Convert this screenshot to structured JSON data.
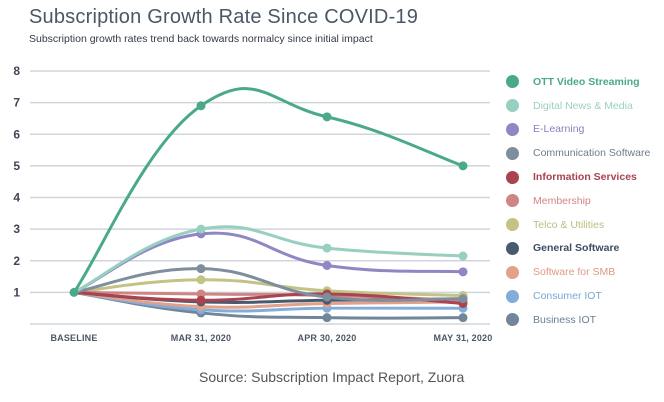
{
  "header": {
    "title": "Subscription Growth Rate Since COVID-19",
    "subtitle": "Subscription growth rates trend back towards normalcy since initial impact"
  },
  "source": "Source: Subscription Impact Report, Zuora",
  "chart_data": {
    "type": "line",
    "title": "Subscription Growth Rate Since COVID-19",
    "subtitle": "Subscription growth rates trend back towards normalcy since initial impact",
    "xlabel": "",
    "ylabel": "",
    "categories": [
      "BASELINE",
      "MAR 31, 2020",
      "APR 30, 2020",
      "MAY 31, 2020"
    ],
    "yticks": [
      "1",
      "2",
      "3",
      "4",
      "5",
      "6",
      "7",
      "8"
    ],
    "ylim": [
      0,
      8
    ],
    "grid": true,
    "legend_position": "right",
    "series": [
      {
        "name": "OTT Video Streaming",
        "color": "#4aa98a",
        "label_color": "#4aa98a",
        "values": [
          1,
          6.9,
          6.55,
          5.0
        ]
      },
      {
        "name": "Digital News & Media",
        "color": "#98cfc0",
        "label_color": "#9ccfc2",
        "values": [
          1,
          3.0,
          2.4,
          2.15
        ]
      },
      {
        "name": "E-Learning",
        "color": "#9086c4",
        "label_color": "#8a80c0",
        "values": [
          1,
          2.85,
          1.85,
          1.65
        ]
      },
      {
        "name": "Communication Software",
        "color": "#7f8d9c",
        "label_color": "#6d7b8a",
        "values": [
          1,
          1.75,
          0.85,
          0.8
        ]
      },
      {
        "name": "Information Services",
        "color": "#a8434f",
        "label_color": "#a8434f",
        "values": [
          1,
          0.75,
          0.95,
          0.65
        ]
      },
      {
        "name": "Membership",
        "color": "#cf8583",
        "label_color": "#cf8583",
        "values": [
          1,
          0.95,
          0.9,
          0.75
        ]
      },
      {
        "name": "Telco & Utilities",
        "color": "#c3c385",
        "label_color": "#bdbd80",
        "values": [
          1,
          1.4,
          1.05,
          0.9
        ]
      },
      {
        "name": "General Software",
        "color": "#475a6f",
        "label_color": "#3c4e63",
        "values": [
          1,
          0.7,
          0.75,
          0.8
        ]
      },
      {
        "name": "Software for SMB",
        "color": "#e3a08a",
        "label_color": "#e09a82",
        "values": [
          1,
          0.55,
          0.65,
          0.7
        ]
      },
      {
        "name": "Consumer IOT",
        "color": "#82acd9",
        "label_color": "#7aa6d6",
        "values": [
          1,
          0.45,
          0.5,
          0.5
        ]
      },
      {
        "name": "Business IOT",
        "color": "#728699",
        "label_color": "#6a7f95",
        "values": [
          1,
          0.35,
          0.2,
          0.2
        ]
      }
    ]
  }
}
